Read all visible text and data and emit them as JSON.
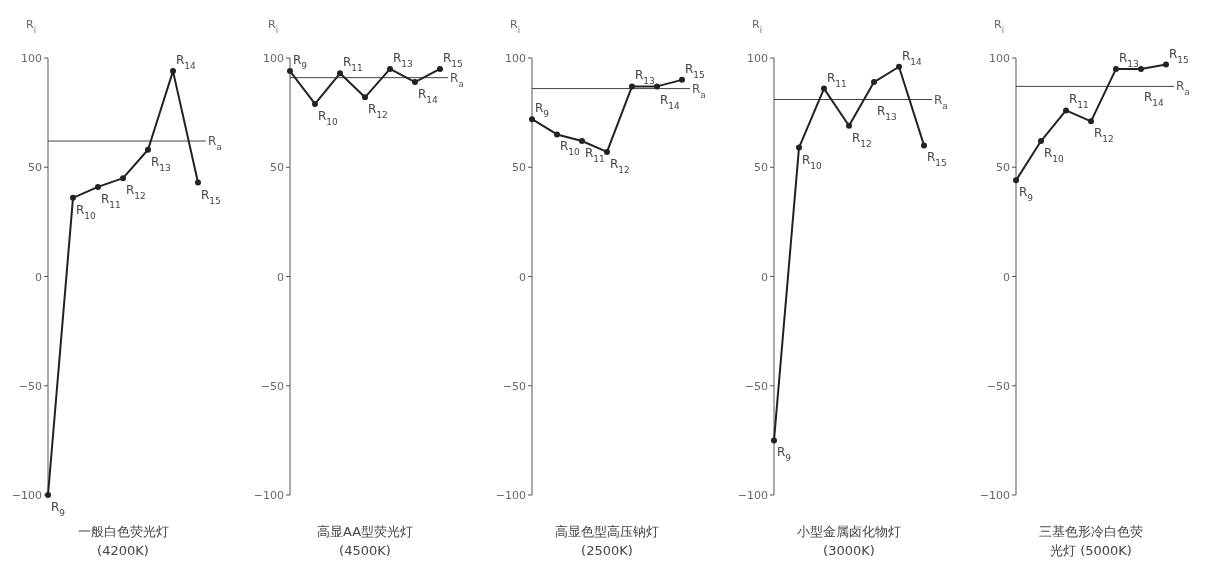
{
  "chart_data": [
    {
      "type": "line",
      "ylabel": "R$_{i}$",
      "xlabel": "一般白色荧光灯\n(4200K)",
      "categories": [
        null,
        null,
        null,
        null,
        null,
        null,
        null
      ],
      "series": [
        {
          "color": "#222222",
          "values": [
            -100,
            36,
            41,
            45,
            58,
            94,
            43
          ]
        }
      ],
      "marker": "circle",
      "ylim": [
        -100,
        100
      ],
      "yticks": [
        100,
        50,
        0,
        -50,
        -100
      ],
      "ref_lines": [
        {
          "axis": "y",
          "value": 62,
          "label": "R$_{a}$"
        }
      ],
      "annotations": [
        "R$_{9}$",
        "R$_{10}$",
        "R$_{11}$",
        "R$_{12}$",
        "R$_{13}$",
        "R$_{14}$",
        "R$_{15}$"
      ]
    },
    {
      "type": "line",
      "ylabel": "R$_{i}$",
      "xlabel": "高显AA型荧光灯\n(4500K)",
      "categories": [
        null,
        null,
        null,
        null,
        null,
        null,
        null
      ],
      "series": [
        {
          "color": "#222222",
          "values": [
            94,
            79,
            93,
            82,
            95,
            89,
            95
          ]
        }
      ],
      "marker": "circle",
      "ylim": [
        -100,
        100
      ],
      "yticks": [
        100,
        50,
        0,
        -50,
        -100
      ],
      "ref_lines": [
        {
          "axis": "y",
          "value": 91,
          "label": "R$_{a}$"
        }
      ],
      "annotations": [
        "R$_{9}$",
        "R$_{10}$",
        "R$_{11}$",
        "R$_{12}$",
        "R$_{13}$",
        "R$_{14}$",
        "R$_{15}$"
      ]
    },
    {
      "type": "line",
      "ylabel": "R$_{i}$",
      "xlabel": "高显色型高压钠灯\n(2500K)",
      "categories": [
        null,
        null,
        null,
        null,
        null,
        null,
        null
      ],
      "series": [
        {
          "color": "#222222",
          "values": [
            72,
            65,
            62,
            57,
            87,
            87,
            90
          ]
        }
      ],
      "marker": "circle",
      "ylim": [
        -100,
        100
      ],
      "yticks": [
        100,
        50,
        0,
        -50,
        -100
      ],
      "ref_lines": [
        {
          "axis": "y",
          "value": 86,
          "label": "R$_{a}$"
        }
      ],
      "annotations": [
        "R$_{9}$",
        "R$_{10}$",
        "R$_{11}$",
        "R$_{12}$",
        "R$_{13}$",
        "R$_{14}$",
        "R$_{15}$"
      ]
    },
    {
      "type": "line",
      "ylabel": "R$_{i}$",
      "xlabel": "小型金属卤化物灯\n(3000K)",
      "categories": [
        null,
        null,
        null,
        null,
        null,
        null,
        null
      ],
      "series": [
        {
          "color": "#222222",
          "values": [
            -75,
            59,
            86,
            69,
            89,
            96,
            60
          ]
        }
      ],
      "marker": "circle",
      "ylim": [
        -100,
        100
      ],
      "yticks": [
        100,
        50,
        0,
        -50,
        -100
      ],
      "ref_lines": [
        {
          "axis": "y",
          "value": 81,
          "label": "R$_{a}$"
        }
      ],
      "annotations": [
        "R$_{9}$",
        "R$_{10}$",
        "R$_{11}$",
        "R$_{12}$",
        "R$_{13}$",
        "R$_{14}$",
        "R$_{15}$"
      ]
    },
    {
      "type": "line",
      "ylabel": "R$_{i}$",
      "xlabel": "三基色形冷白色荧光灯 (5000K)",
      "categories": [
        null,
        null,
        null,
        null,
        null,
        null,
        null
      ],
      "series": [
        {
          "color": "#222222",
          "values": [
            44,
            62,
            76,
            71,
            95,
            95,
            97
          ]
        }
      ],
      "marker": "circle",
      "ylim": [
        -100,
        100
      ],
      "yticks": [
        100,
        50,
        0,
        -50,
        -100
      ],
      "ref_lines": [
        {
          "axis": "y",
          "value": 87,
          "label": "R$_{a}$"
        }
      ],
      "annotations": [
        "R$_{9}$",
        "R$_{10}$",
        "R$_{11}$",
        "R$_{12}$",
        "R$_{13}$",
        "R$_{14}$",
        "R$_{15}$"
      ]
    }
  ]
}
